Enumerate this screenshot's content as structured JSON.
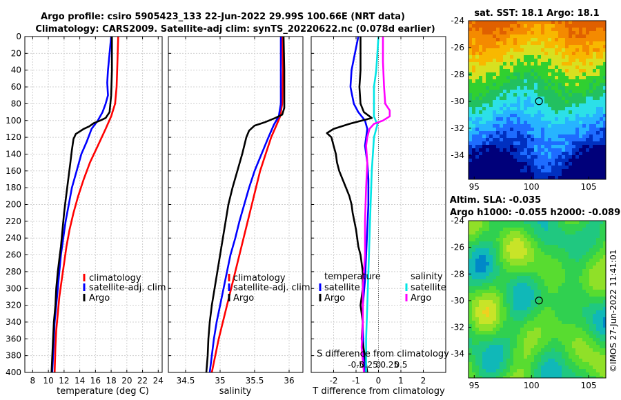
{
  "header": {
    "title_line1": "Argo profile: csiro 5905423_133 22-Jun-2022 29.99S 100.66E (NRT data)",
    "title_line2": "Climatology: CARS2009. Satellite-adj clim: synTS_20220622.nc (0.078d earlier)"
  },
  "colors": {
    "climatology": "#ff0000",
    "satellite_adj": "#0000ff",
    "argo": "#000000",
    "sal_satellite": "#00e5e5",
    "sal_argo": "#ff00ff"
  },
  "chart_data": [
    {
      "type": "line",
      "name": "temperature-profile",
      "xlabel": "temperature (deg C)",
      "ylabel": "",
      "xlim": [
        7,
        24.5
      ],
      "ylim": [
        400,
        0
      ],
      "xticks": [
        8,
        10,
        12,
        14,
        16,
        18,
        20,
        22,
        24
      ],
      "yticks": [
        0,
        20,
        40,
        60,
        80,
        100,
        120,
        140,
        160,
        180,
        200,
        220,
        240,
        260,
        280,
        300,
        320,
        340,
        360,
        380,
        400
      ],
      "legend": [
        "climatology",
        "satellite-adj. clim",
        "Argo"
      ],
      "series": [
        {
          "name": "climatology",
          "color": "climatology",
          "points": [
            [
              18.9,
              0
            ],
            [
              18.8,
              30
            ],
            [
              18.7,
              60
            ],
            [
              18.5,
              80
            ],
            [
              18.0,
              95
            ],
            [
              17.3,
              110
            ],
            [
              16.3,
              130
            ],
            [
              15.3,
              150
            ],
            [
              14.5,
              170
            ],
            [
              13.8,
              190
            ],
            [
              13.2,
              210
            ],
            [
              12.7,
              230
            ],
            [
              12.3,
              250
            ],
            [
              12.0,
              270
            ],
            [
              11.7,
              290
            ],
            [
              11.4,
              310
            ],
            [
              11.2,
              330
            ],
            [
              11.0,
              350
            ],
            [
              10.9,
              370
            ],
            [
              10.8,
              400
            ]
          ]
        },
        {
          "name": "satellite-adj. clim",
          "color": "satellite_adj",
          "points": [
            [
              18.0,
              0
            ],
            [
              17.8,
              20
            ],
            [
              17.6,
              40
            ],
            [
              17.5,
              55
            ],
            [
              17.6,
              70
            ],
            [
              17.3,
              80
            ],
            [
              16.9,
              90
            ],
            [
              16.3,
              100
            ],
            [
              15.5,
              110
            ],
            [
              14.9,
              125
            ],
            [
              14.2,
              140
            ],
            [
              13.6,
              160
            ],
            [
              13.0,
              180
            ],
            [
              12.6,
              200
            ],
            [
              12.2,
              220
            ],
            [
              11.9,
              240
            ],
            [
              11.6,
              260
            ],
            [
              11.4,
              280
            ],
            [
              11.2,
              300
            ],
            [
              11.0,
              320
            ],
            [
              10.8,
              340
            ],
            [
              10.7,
              360
            ],
            [
              10.6,
              380
            ],
            [
              10.5,
              400
            ]
          ]
        },
        {
          "name": "Argo",
          "color": "argo",
          "points": [
            [
              18.1,
              0
            ],
            [
              18.1,
              40
            ],
            [
              18.0,
              70
            ],
            [
              17.8,
              90
            ],
            [
              17.3,
              97
            ],
            [
              16.6,
              100
            ],
            [
              15.8,
              103
            ],
            [
              15.2,
              107
            ],
            [
              14.5,
              110
            ],
            [
              14.0,
              113
            ],
            [
              13.5,
              116
            ],
            [
              13.2,
              122
            ],
            [
              13.0,
              135
            ],
            [
              12.8,
              150
            ],
            [
              12.6,
              165
            ],
            [
              12.4,
              180
            ],
            [
              12.2,
              195
            ],
            [
              12.0,
              210
            ],
            [
              11.8,
              230
            ],
            [
              11.6,
              250
            ],
            [
              11.4,
              265
            ],
            [
              11.2,
              280
            ],
            [
              11.0,
              300
            ],
            [
              10.9,
              320
            ],
            [
              10.7,
              340
            ],
            [
              10.6,
              360
            ],
            [
              10.5,
              380
            ],
            [
              10.4,
              400
            ]
          ]
        }
      ]
    },
    {
      "type": "line",
      "name": "salinity-profile",
      "xlabel": "salinity",
      "ylabel": "",
      "xlim": [
        34.25,
        36.2
      ],
      "ylim": [
        400,
        0
      ],
      "xticks": [
        34.5,
        35,
        35.5,
        36
      ],
      "xticklabels": [
        "34.5",
        "35",
        "35.5",
        "36"
      ],
      "legend": [
        "climatology",
        "satellite-adj. clim",
        "Argo"
      ],
      "series": [
        {
          "name": "climatology",
          "color": "climatology",
          "points": [
            [
              35.9,
              0
            ],
            [
              35.91,
              40
            ],
            [
              35.9,
              80
            ],
            [
              35.87,
              95
            ],
            [
              35.82,
              105
            ],
            [
              35.74,
              120
            ],
            [
              35.66,
              140
            ],
            [
              35.58,
              160
            ],
            [
              35.52,
              180
            ],
            [
              35.46,
              200
            ],
            [
              35.4,
              220
            ],
            [
              35.34,
              240
            ],
            [
              35.28,
              260
            ],
            [
              35.22,
              280
            ],
            [
              35.16,
              300
            ],
            [
              35.1,
              320
            ],
            [
              35.04,
              340
            ],
            [
              34.98,
              360
            ],
            [
              34.93,
              380
            ],
            [
              34.88,
              400
            ]
          ]
        },
        {
          "name": "satellite-adj. clim",
          "color": "satellite_adj",
          "points": [
            [
              35.88,
              0
            ],
            [
              35.88,
              40
            ],
            [
              35.88,
              80
            ],
            [
              35.85,
              95
            ],
            [
              35.78,
              105
            ],
            [
              35.7,
              120
            ],
            [
              35.6,
              140
            ],
            [
              35.5,
              160
            ],
            [
              35.42,
              180
            ],
            [
              35.35,
              200
            ],
            [
              35.28,
              220
            ],
            [
              35.22,
              240
            ],
            [
              35.15,
              260
            ],
            [
              35.1,
              280
            ],
            [
              35.05,
              300
            ],
            [
              35.0,
              320
            ],
            [
              34.95,
              340
            ],
            [
              34.91,
              360
            ],
            [
              34.88,
              380
            ],
            [
              34.85,
              400
            ]
          ]
        },
        {
          "name": "Argo",
          "color": "argo",
          "points": [
            [
              35.92,
              0
            ],
            [
              35.93,
              40
            ],
            [
              35.93,
              85
            ],
            [
              35.9,
              93
            ],
            [
              35.8,
              97
            ],
            [
              35.65,
              102
            ],
            [
              35.5,
              106
            ],
            [
              35.42,
              112
            ],
            [
              35.38,
              120
            ],
            [
              35.32,
              140
            ],
            [
              35.25,
              160
            ],
            [
              35.18,
              180
            ],
            [
              35.12,
              200
            ],
            [
              35.08,
              220
            ],
            [
              35.04,
              240
            ],
            [
              35.0,
              260
            ],
            [
              34.96,
              280
            ],
            [
              34.92,
              300
            ],
            [
              34.88,
              320
            ],
            [
              34.85,
              340
            ],
            [
              34.83,
              360
            ],
            [
              34.82,
              380
            ],
            [
              34.8,
              400
            ]
          ]
        }
      ]
    },
    {
      "type": "line",
      "name": "difference-profile",
      "xlabel": "T difference from climatology",
      "top_label": "S difference from climatology",
      "xlim": [
        -3,
        3
      ],
      "ylim": [
        400,
        0
      ],
      "xticks": [
        -2,
        -1,
        0,
        1,
        2
      ],
      "xticklabels": [
        "-2",
        "-1",
        "0",
        "1",
        "2"
      ],
      "top_ticks": [
        -1,
        -0.5,
        0,
        0.5,
        1
      ],
      "top_ticklabels": [
        "-0.5",
        "-0.25",
        "0",
        "0.25",
        "0.5"
      ],
      "legend_temperature": {
        "title": "temperature",
        "items": [
          "satellite",
          "Argo"
        ]
      },
      "legend_salinity": {
        "title": "salinity",
        "items": [
          "satellite",
          "Argo"
        ]
      },
      "series": [
        {
          "name": "temperature satellite",
          "color": "satellite_adj",
          "points": [
            [
              -0.9,
              0
            ],
            [
              -1.05,
              20
            ],
            [
              -1.2,
              40
            ],
            [
              -1.25,
              60
            ],
            [
              -1.1,
              80
            ],
            [
              -0.9,
              90
            ],
            [
              -0.6,
              100
            ],
            [
              -0.5,
              110
            ],
            [
              -0.6,
              130
            ],
            [
              -0.5,
              150
            ],
            [
              -0.45,
              170
            ],
            [
              -0.45,
              200
            ],
            [
              -0.5,
              230
            ],
            [
              -0.55,
              260
            ],
            [
              -0.6,
              290
            ],
            [
              -0.7,
              320
            ],
            [
              -0.7,
              350
            ],
            [
              -0.65,
              380
            ],
            [
              -0.6,
              400
            ]
          ]
        },
        {
          "name": "temperature Argo",
          "color": "argo",
          "points": [
            [
              -0.8,
              0
            ],
            [
              -0.8,
              20
            ],
            [
              -0.8,
              40
            ],
            [
              -0.85,
              60
            ],
            [
              -0.8,
              80
            ],
            [
              -0.65,
              90
            ],
            [
              -0.3,
              97
            ],
            [
              -1.3,
              104
            ],
            [
              -2.0,
              110
            ],
            [
              -2.3,
              115
            ],
            [
              -2.1,
              120
            ],
            [
              -2.0,
              130
            ],
            [
              -1.9,
              140
            ],
            [
              -1.85,
              150
            ],
            [
              -1.75,
              160
            ],
            [
              -1.6,
              170
            ],
            [
              -1.45,
              180
            ],
            [
              -1.3,
              190
            ],
            [
              -1.2,
              200
            ],
            [
              -1.15,
              210
            ],
            [
              -1.0,
              230
            ],
            [
              -0.9,
              250
            ],
            [
              -0.8,
              260
            ],
            [
              -0.7,
              280
            ],
            [
              -0.7,
              300
            ],
            [
              -0.8,
              320
            ],
            [
              -0.7,
              340
            ],
            [
              -0.75,
              360
            ],
            [
              -0.6,
              380
            ],
            [
              -0.5,
              400
            ]
          ]
        },
        {
          "name": "salinity satellite",
          "color": "sal_satellite",
          "points": [
            [
              0.0,
              0
            ],
            [
              -0.1,
              40
            ],
            [
              -0.2,
              60
            ],
            [
              -0.2,
              80
            ],
            [
              -0.2,
              95
            ],
            [
              -0.05,
              105
            ],
            [
              -0.2,
              120
            ],
            [
              -0.3,
              160
            ],
            [
              -0.35,
              200
            ],
            [
              -0.4,
              240
            ],
            [
              -0.45,
              280
            ],
            [
              -0.5,
              320
            ],
            [
              -0.55,
              360
            ],
            [
              -0.55,
              400
            ]
          ]
        },
        {
          "name": "salinity Argo",
          "color": "sal_argo",
          "points": [
            [
              0.2,
              0
            ],
            [
              0.2,
              30
            ],
            [
              0.25,
              60
            ],
            [
              0.3,
              80
            ],
            [
              0.5,
              88
            ],
            [
              0.5,
              95
            ],
            [
              0.2,
              100
            ],
            [
              -0.2,
              104
            ],
            [
              -0.4,
              110
            ],
            [
              -0.5,
              120
            ],
            [
              -0.55,
              130
            ],
            [
              -0.5,
              150
            ],
            [
              -0.55,
              180
            ],
            [
              -0.6,
              220
            ],
            [
              -0.6,
              260
            ],
            [
              -0.7,
              300
            ],
            [
              -0.7,
              340
            ],
            [
              -0.75,
              370
            ],
            [
              -0.65,
              400
            ]
          ]
        }
      ]
    },
    {
      "type": "heatmap",
      "name": "sst-map",
      "title": "sat. SST: 18.1 Argo: 18.1",
      "xlim": [
        94.5,
        106.5
      ],
      "ylim": [
        -35.8,
        -24
      ],
      "xticks": [
        95,
        100,
        105
      ],
      "yticks": [
        -26,
        -28,
        -30,
        -32,
        -34
      ],
      "marker": {
        "lon": 100.66,
        "lat": -29.99
      },
      "value_range": [
        13,
        23
      ],
      "field_description": "bands"
    },
    {
      "type": "heatmap",
      "name": "sla-map",
      "title_line1": "Altim. SLA: -0.035",
      "title_line2": "Argo h1000: -0.055 h2000: -0.089",
      "xlim": [
        94.5,
        106.5
      ],
      "ylim": [
        -35.8,
        -24
      ],
      "xticks": [
        95,
        100,
        105
      ],
      "yticks": [
        -26,
        -28,
        -30,
        -32,
        -34
      ],
      "marker": {
        "lon": 100.66,
        "lat": -29.99
      }
    }
  ],
  "credit": "©IMOS 27-Jun-2022 11:41:01"
}
